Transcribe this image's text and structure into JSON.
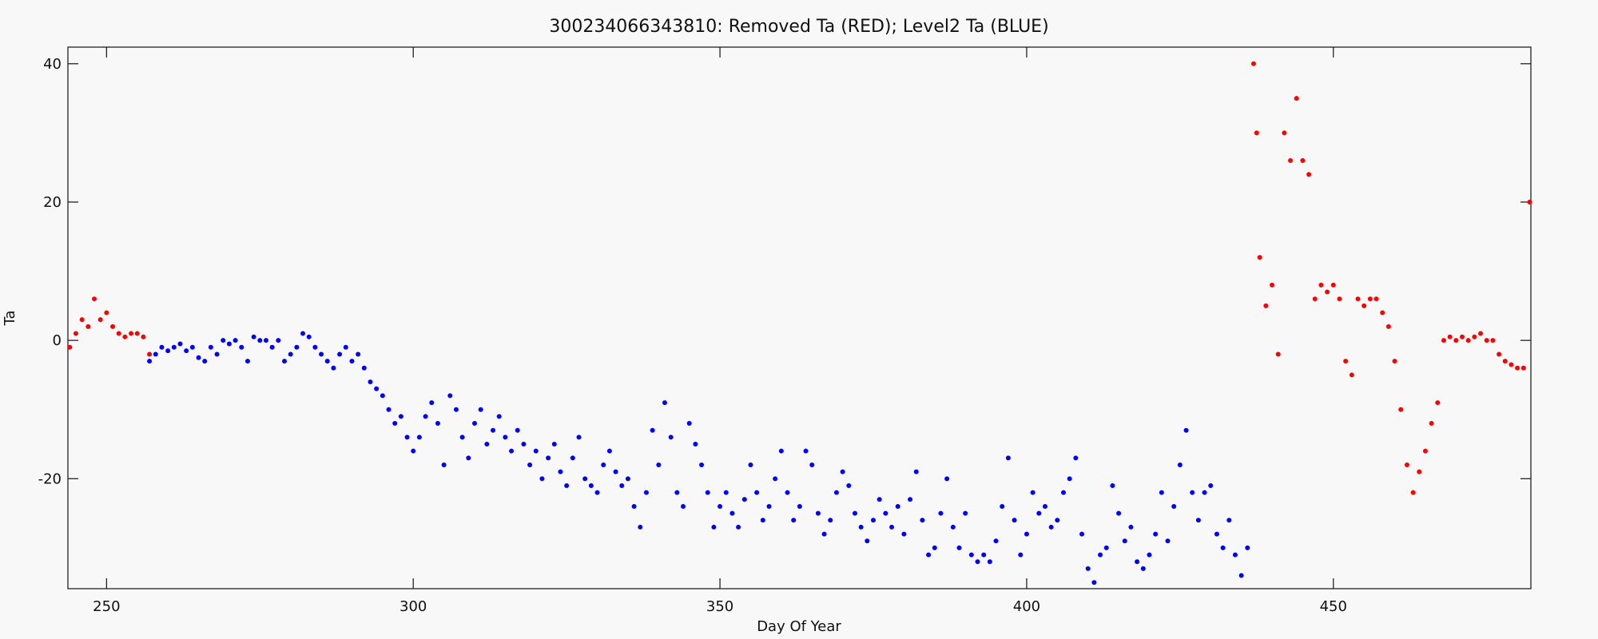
{
  "chart_data": {
    "type": "scatter",
    "title": "300234066343810: Removed Ta (RED); Level2 Ta (BLUE)",
    "x_label": "Day Of Year",
    "y_label": "Ta",
    "xlim": [
      243.7,
      482.2
    ],
    "ylim": [
      -35.9,
      42.4
    ],
    "xticks": [
      250,
      300,
      350,
      400,
      450
    ],
    "yticks": [
      -20,
      0,
      20,
      40
    ],
    "series": [
      {
        "name": "Removed Ta (RED)",
        "color": "#ff0000",
        "x": [
          244,
          245,
          246,
          247,
          248,
          249,
          250,
          251,
          252,
          253,
          254,
          255,
          256,
          257
        ],
        "values": [
          -1,
          1,
          3,
          2,
          6,
          3,
          4,
          2,
          1,
          0.5,
          1,
          1,
          0.5,
          -2
        ]
      },
      {
        "name": "Level2 Ta (BLUE)",
        "color": "#0000ff",
        "x": [
          257,
          258,
          259,
          260,
          261,
          262,
          263,
          264,
          265,
          266,
          267,
          268,
          269,
          270,
          271,
          272,
          273,
          274,
          275,
          276,
          277,
          278,
          279,
          280,
          281,
          282,
          283,
          284,
          285,
          286,
          287,
          288,
          289,
          290,
          291,
          292,
          293,
          294,
          295,
          296,
          297,
          298,
          299,
          300,
          301,
          302,
          303,
          304,
          305,
          306,
          307,
          308,
          309,
          310,
          311,
          312,
          313,
          314,
          315,
          316,
          317,
          318,
          319,
          320,
          321,
          322,
          323,
          324,
          325,
          326,
          327,
          328,
          329,
          330,
          331,
          332,
          333,
          334,
          335,
          336,
          337,
          338,
          339,
          340,
          341,
          342,
          343,
          344,
          345,
          346,
          347,
          348,
          349,
          350,
          351,
          352,
          353,
          354,
          355,
          356,
          357,
          358,
          359,
          360,
          361,
          362,
          363,
          364,
          365,
          366,
          367,
          368,
          369,
          370,
          371,
          372,
          373,
          374,
          375,
          376,
          377,
          378,
          379,
          380,
          381,
          382,
          383,
          384,
          385,
          386,
          387,
          388,
          389,
          390,
          391,
          392,
          393,
          394,
          395,
          396,
          397,
          398,
          399,
          400,
          401,
          402,
          403,
          404,
          405,
          406,
          407,
          408,
          409,
          410,
          411,
          412,
          413,
          414,
          415,
          416,
          417,
          418,
          419,
          420,
          421,
          422,
          423,
          424,
          425,
          426,
          427,
          428,
          429,
          430,
          431,
          432,
          433,
          434,
          435,
          436
        ],
        "values": [
          -3,
          -2,
          -1,
          -1.5,
          -1,
          -0.5,
          -1.5,
          -1,
          -2.5,
          -3,
          -1,
          -2,
          0,
          -0.5,
          0,
          -1,
          -3,
          0.5,
          0,
          0,
          -1,
          0,
          -3,
          -2,
          -1,
          1,
          0.5,
          -1,
          -2,
          -3,
          -4,
          -2,
          -1,
          -3,
          -2,
          -4,
          -6,
          -7,
          -8,
          -10,
          -12,
          -11,
          -14,
          -16,
          -14,
          -11,
          -9,
          -12,
          -18,
          -8,
          -10,
          -14,
          -17,
          -12,
          -10,
          -15,
          -13,
          -11,
          -14,
          -16,
          -13,
          -15,
          -18,
          -16,
          -20,
          -17,
          -15,
          -19,
          -21,
          -17,
          -14,
          -20,
          -21,
          -22,
          -18,
          -16,
          -19,
          -21,
          -20,
          -24,
          -27,
          -22,
          -13,
          -18,
          -9,
          -14,
          -22,
          -24,
          -12,
          -15,
          -18,
          -22,
          -27,
          -24,
          -22,
          -25,
          -27,
          -23,
          -18,
          -22,
          -26,
          -24,
          -20,
          -16,
          -22,
          -26,
          -24,
          -16,
          -18,
          -25,
          -28,
          -26,
          -22,
          -19,
          -21,
          -25,
          -27,
          -29,
          -26,
          -23,
          -25,
          -27,
          -24,
          -28,
          -23,
          -19,
          -26,
          -31,
          -30,
          -25,
          -20,
          -27,
          -30,
          -25,
          -31,
          -32,
          -31,
          -32,
          -29,
          -24,
          -17,
          -26,
          -31,
          -28,
          -22,
          -25,
          -24,
          -27,
          -26,
          -22,
          -20,
          -17,
          -28,
          -33,
          -35,
          -31,
          -30,
          -21,
          -25,
          -29,
          -27,
          -32,
          -33,
          -31,
          -28,
          -22,
          -29,
          -24,
          -18,
          -13,
          -22,
          -26,
          -22,
          -21,
          -28,
          -30,
          -26,
          -31,
          -34,
          -30
        ]
      },
      {
        "name": "Removed Ta (RED)",
        "color": "#ff0000",
        "x": [
          437,
          437.5,
          438,
          439,
          440,
          441,
          442,
          443,
          444,
          445,
          446,
          447,
          448,
          449,
          450,
          451,
          452,
          453,
          454,
          455,
          456,
          457,
          458,
          459,
          460,
          461,
          462,
          463,
          464,
          465,
          466,
          467,
          468,
          469,
          470,
          471,
          472,
          473,
          474,
          475,
          476,
          477,
          478,
          479,
          480,
          481,
          482
        ],
        "values": [
          40,
          30,
          12,
          5,
          8,
          -2,
          30,
          26,
          35,
          26,
          24,
          6,
          8,
          7,
          8,
          6,
          -3,
          -5,
          6,
          5,
          6,
          6,
          4,
          2,
          -3,
          -10,
          -18,
          -22,
          -19,
          -16,
          -12,
          -9,
          0,
          0.5,
          0,
          0.5,
          0,
          0.5,
          1,
          0,
          0,
          -2,
          -3,
          -3.5,
          -4,
          -4,
          20
        ]
      }
    ]
  }
}
